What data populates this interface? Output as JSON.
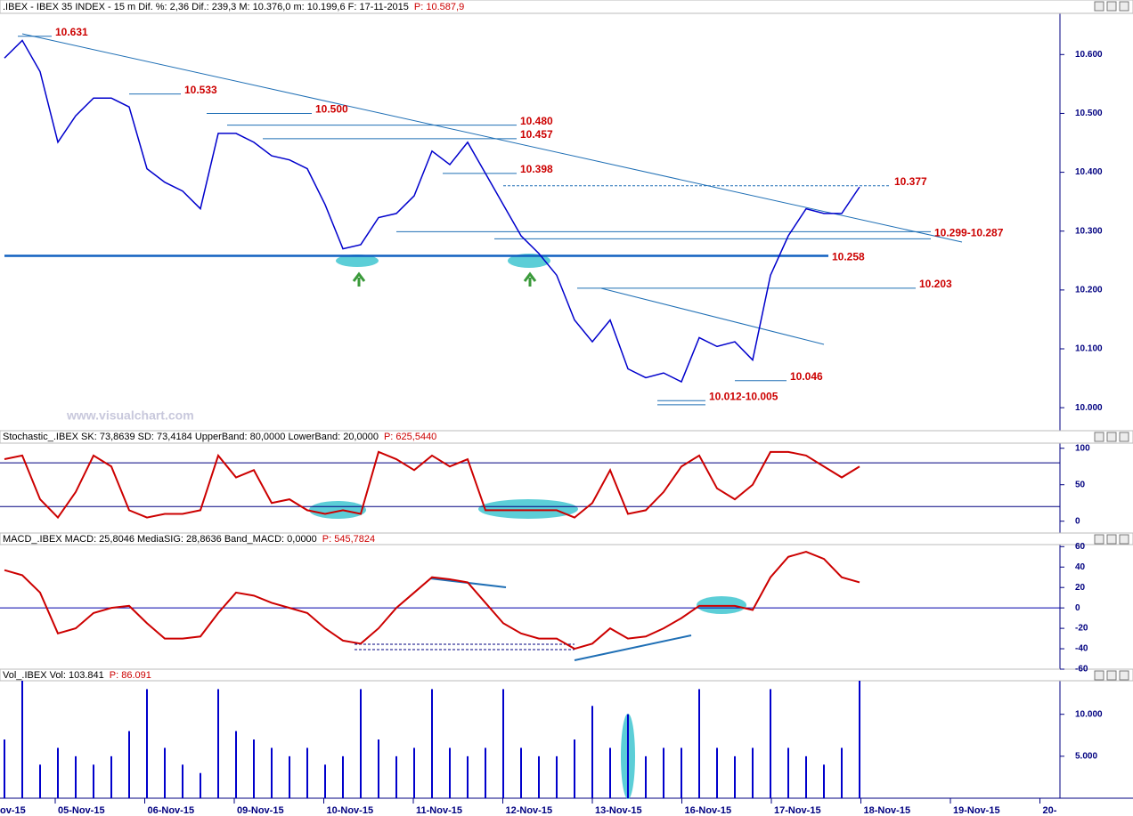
{
  "watermark": "www.visualchart.com",
  "chart_data": [
    {
      "type": "line",
      "title": ".IBEX - IBEX 35 INDEX - 15 m  Dif. %: 2,36  Dif.: 239,3  M: 10.376,0  m: 10.199,6  F: 17-11-2015",
      "price_label": "P: 10.587,9",
      "series": [
        {
          "name": "IBEX",
          "color": "#0000cc",
          "values": [
            10.594,
            10.624,
            10.571,
            10.451,
            10.496,
            10.526,
            10.526,
            10.511,
            10.406,
            10.383,
            10.368,
            10.338,
            10.466,
            10.466,
            10.451,
            10.428,
            10.421,
            10.406,
            10.345,
            10.27,
            10.277,
            10.323,
            10.33,
            10.36,
            10.436,
            10.413,
            10.451,
            10.398,
            10.345,
            10.292,
            10.262,
            10.225,
            10.149,
            10.112,
            10.149,
            10.066,
            10.051,
            10.059,
            10.044,
            10.119,
            10.104,
            10.112,
            10.081,
            10.225,
            10.292,
            10.338,
            10.33,
            10.33,
            10.375
          ]
        }
      ],
      "ylim": [
        9.97,
        10.67
      ],
      "yticks": [
        {
          "value": 10.0,
          "label": "10.000"
        },
        {
          "value": 10.1,
          "label": "10.100"
        },
        {
          "value": 10.2,
          "label": "10.200"
        },
        {
          "value": 10.3,
          "label": "10.300"
        },
        {
          "value": 10.4,
          "label": "10.400"
        },
        {
          "value": 10.5,
          "label": "10.500"
        },
        {
          "value": 10.6,
          "label": "10.600"
        }
      ],
      "annotations": [
        {
          "value": 10.631,
          "label": "10.631"
        },
        {
          "value": 10.533,
          "label": "10.533"
        },
        {
          "value": 10.5,
          "label": "10.500"
        },
        {
          "value": 10.48,
          "label": "10.480"
        },
        {
          "value": 10.457,
          "label": "10.457"
        },
        {
          "value": 10.398,
          "label": "10.398"
        },
        {
          "value": 10.377,
          "label": "10.377"
        },
        {
          "values": [
            10.299,
            10.287
          ],
          "label": "10.299-10.287"
        },
        {
          "value": 10.258,
          "label": "10.258"
        },
        {
          "value": 10.203,
          "label": "10.203"
        },
        {
          "value": 10.046,
          "label": "10.046"
        },
        {
          "values": [
            10.012,
            10.005
          ],
          "label": "10.012-10.005"
        }
      ]
    },
    {
      "type": "line",
      "title": "Stochastic_.IBEX SK: 73,8639 SD: 73,4184 UpperBand: 80,0000 LowerBand: 20,0000",
      "price_label": "P: 625,5440",
      "series": [
        {
          "name": "SK",
          "color": "#cc0000",
          "values": [
            85,
            90,
            30,
            5,
            40,
            90,
            75,
            15,
            5,
            10,
            10,
            15,
            90,
            60,
            70,
            25,
            30,
            15,
            10,
            15,
            10,
            95,
            85,
            70,
            90,
            75,
            85,
            15,
            15,
            15,
            15,
            15,
            5,
            25,
            70,
            10,
            15,
            40,
            75,
            90,
            45,
            30,
            50,
            95,
            95,
            90,
            75,
            60,
            75
          ]
        }
      ],
      "bands": [
        80,
        20
      ],
      "ylim": [
        -15,
        107
      ],
      "yticks": [
        0,
        50,
        100
      ]
    },
    {
      "type": "line",
      "title": "MACD_.IBEX MACD: 25,8046 MediaSIG: 28,8636 Band_MACD: 0,0000",
      "price_label": "P: 545,7824",
      "series": [
        {
          "name": "MACD",
          "color": "#cc0000",
          "values": [
            37,
            32,
            15,
            -25,
            -20,
            -5,
            0,
            2,
            -15,
            -30,
            -30,
            -28,
            -5,
            15,
            12,
            5,
            0,
            -5,
            -20,
            -32,
            -35,
            -20,
            0,
            15,
            30,
            28,
            25,
            5,
            -15,
            -25,
            -30,
            -30,
            -40,
            -35,
            -20,
            -30,
            -28,
            -20,
            -10,
            2,
            2,
            2,
            -2,
            30,
            50,
            55,
            48,
            30,
            25
          ]
        }
      ],
      "ylim": [
        -60,
        62
      ],
      "yticks": [
        -60,
        -40,
        -20,
        0,
        20,
        40,
        60
      ]
    },
    {
      "type": "bar",
      "title": "Vol_.IBEX Vol: 103.841",
      "price_label": "P: 86.091",
      "series": [
        {
          "name": "Vol",
          "color": "#0000cc",
          "values": [
            7000,
            14000,
            4000,
            6000,
            5000,
            4000,
            5000,
            8000,
            13000,
            6000,
            4000,
            3000,
            13000,
            8000,
            7000,
            6000,
            5000,
            6000,
            4000,
            5000,
            13000,
            7000,
            5000,
            6000,
            13000,
            6000,
            5000,
            6000,
            13000,
            6000,
            5000,
            5000,
            7000,
            11000,
            6000,
            10000,
            5000,
            6000,
            6000,
            13000,
            6000,
            5000,
            6000,
            13000,
            6000,
            5000,
            4000,
            6000,
            14000
          ]
        }
      ],
      "ylim": [
        0,
        14000
      ],
      "yticks": [
        {
          "value": 5000,
          "label": "5.000"
        },
        {
          "value": 10000,
          "label": "10.000"
        }
      ],
      "x_labels": [
        "ov-15",
        "05-Nov-15",
        "06-Nov-15",
        "09-Nov-15",
        "10-Nov-15",
        "11-Nov-15",
        "12-Nov-15",
        "13-Nov-15",
        "16-Nov-15",
        "17-Nov-15",
        "18-Nov-15",
        "19-Nov-15",
        "20-"
      ]
    }
  ]
}
